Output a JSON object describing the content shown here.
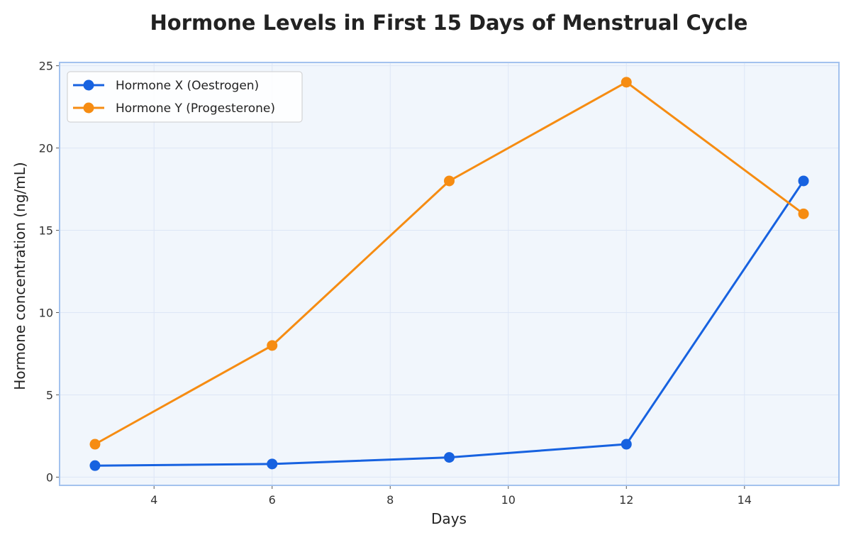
{
  "chart_data": {
    "type": "line",
    "title": "Hormone Levels in First 15 Days of Menstrual Cycle",
    "xlabel": "Days",
    "ylabel": "Hormone concentration (ng/mL)",
    "x": [
      3,
      6,
      9,
      12,
      15
    ],
    "xlim": [
      2.4,
      15.6
    ],
    "ylim": [
      -0.5,
      25.2
    ],
    "xticks": [
      4,
      6,
      8,
      10,
      12,
      14
    ],
    "yticks": [
      0,
      5,
      10,
      15,
      20,
      25
    ],
    "grid": true,
    "legend_position": "top-left",
    "series": [
      {
        "name": "Hormone X (Oestrogen)",
        "color": "#1762e0",
        "values": [
          0.7,
          0.8,
          1.2,
          2.0,
          18.0
        ]
      },
      {
        "name": "Hormone Y (Progesterone)",
        "color": "#f68c12",
        "values": [
          2.0,
          8.0,
          18.0,
          24.0,
          16.0
        ]
      }
    ]
  },
  "colors": {
    "plot_background": "#f1f6fc",
    "plot_border": "#a3c2ee",
    "grid": "#dde6f6"
  }
}
